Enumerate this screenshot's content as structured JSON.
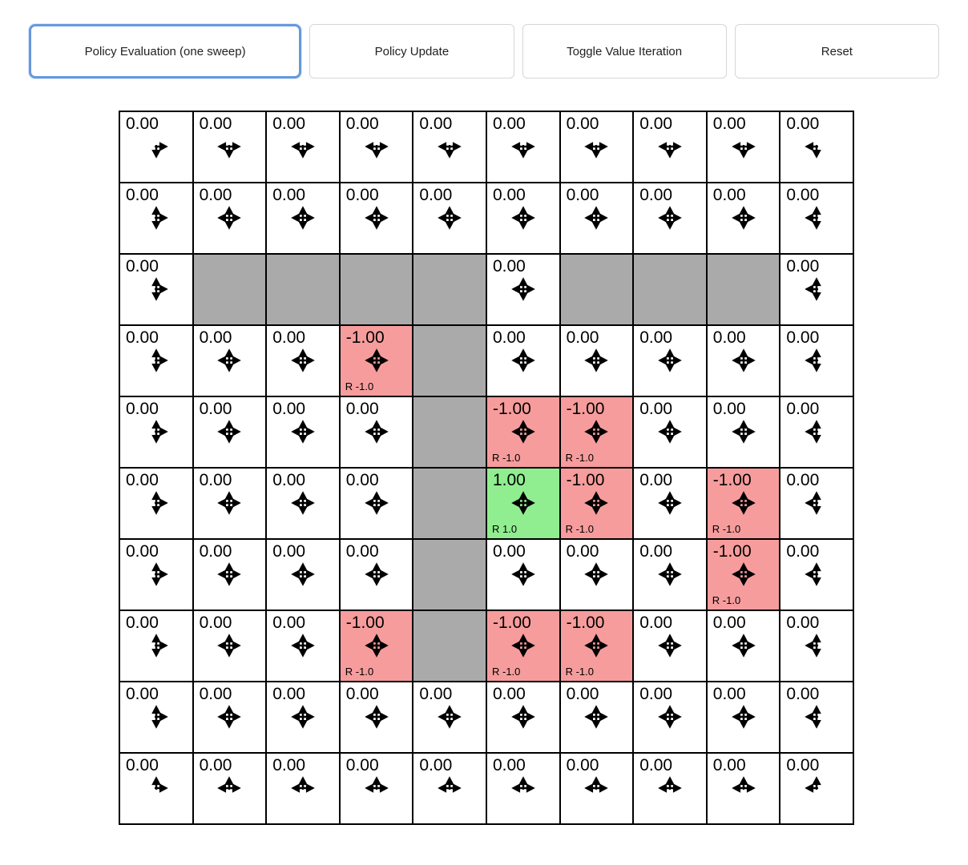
{
  "toolbar": {
    "buttons": [
      {
        "label": "Policy Evaluation (one sweep)",
        "active": true
      },
      {
        "label": "Policy Update",
        "active": false
      },
      {
        "label": "Toggle Value Iteration",
        "active": false
      },
      {
        "label": "Reset",
        "active": false
      }
    ]
  },
  "colors": {
    "wall": "#aaaaaa",
    "negative": "#f69c9c",
    "positive": "#90ee90",
    "active_border": "#6699dd"
  },
  "grid": {
    "rows": 10,
    "cols": 10,
    "rows_data": [
      [
        {
          "type": "normal",
          "value": "0.00",
          "arrows": "DR"
        },
        {
          "type": "normal",
          "value": "0.00",
          "arrows": "LDR"
        },
        {
          "type": "normal",
          "value": "0.00",
          "arrows": "LDR"
        },
        {
          "type": "normal",
          "value": "0.00",
          "arrows": "LDR"
        },
        {
          "type": "normal",
          "value": "0.00",
          "arrows": "LDR"
        },
        {
          "type": "normal",
          "value": "0.00",
          "arrows": "LDR"
        },
        {
          "type": "normal",
          "value": "0.00",
          "arrows": "LDR"
        },
        {
          "type": "normal",
          "value": "0.00",
          "arrows": "LDR"
        },
        {
          "type": "normal",
          "value": "0.00",
          "arrows": "LDR"
        },
        {
          "type": "normal",
          "value": "0.00",
          "arrows": "DL"
        }
      ],
      [
        {
          "type": "normal",
          "value": "0.00",
          "arrows": "UDR"
        },
        {
          "type": "normal",
          "value": "0.00",
          "arrows": "UDLR"
        },
        {
          "type": "normal",
          "value": "0.00",
          "arrows": "UDLR"
        },
        {
          "type": "normal",
          "value": "0.00",
          "arrows": "UDLR"
        },
        {
          "type": "normal",
          "value": "0.00",
          "arrows": "UDLR"
        },
        {
          "type": "normal",
          "value": "0.00",
          "arrows": "UDLR"
        },
        {
          "type": "normal",
          "value": "0.00",
          "arrows": "UDLR"
        },
        {
          "type": "normal",
          "value": "0.00",
          "arrows": "UDLR"
        },
        {
          "type": "normal",
          "value": "0.00",
          "arrows": "UDLR"
        },
        {
          "type": "normal",
          "value": "0.00",
          "arrows": "UDL"
        }
      ],
      [
        {
          "type": "normal",
          "value": "0.00",
          "arrows": "UDR"
        },
        {
          "type": "wall"
        },
        {
          "type": "wall"
        },
        {
          "type": "wall"
        },
        {
          "type": "wall"
        },
        {
          "type": "normal",
          "value": "0.00",
          "arrows": "UDLR"
        },
        {
          "type": "wall"
        },
        {
          "type": "wall"
        },
        {
          "type": "wall"
        },
        {
          "type": "normal",
          "value": "0.00",
          "arrows": "UDL"
        }
      ],
      [
        {
          "type": "normal",
          "value": "0.00",
          "arrows": "UDR"
        },
        {
          "type": "normal",
          "value": "0.00",
          "arrows": "UDLR"
        },
        {
          "type": "normal",
          "value": "0.00",
          "arrows": "UDLR"
        },
        {
          "type": "negative",
          "value": "-1.00",
          "arrows": "UDLR",
          "reward": "R -1.0"
        },
        {
          "type": "wall"
        },
        {
          "type": "normal",
          "value": "0.00",
          "arrows": "UDLR"
        },
        {
          "type": "normal",
          "value": "0.00",
          "arrows": "UDLR"
        },
        {
          "type": "normal",
          "value": "0.00",
          "arrows": "UDLR"
        },
        {
          "type": "normal",
          "value": "0.00",
          "arrows": "UDLR"
        },
        {
          "type": "normal",
          "value": "0.00",
          "arrows": "UDL"
        }
      ],
      [
        {
          "type": "normal",
          "value": "0.00",
          "arrows": "UDR"
        },
        {
          "type": "normal",
          "value": "0.00",
          "arrows": "UDLR"
        },
        {
          "type": "normal",
          "value": "0.00",
          "arrows": "UDLR"
        },
        {
          "type": "normal",
          "value": "0.00",
          "arrows": "UDLR"
        },
        {
          "type": "wall"
        },
        {
          "type": "negative",
          "value": "-1.00",
          "arrows": "UDLR",
          "reward": "R -1.0"
        },
        {
          "type": "negative",
          "value": "-1.00",
          "arrows": "UDLR",
          "reward": "R -1.0"
        },
        {
          "type": "normal",
          "value": "0.00",
          "arrows": "UDLR"
        },
        {
          "type": "normal",
          "value": "0.00",
          "arrows": "UDLR"
        },
        {
          "type": "normal",
          "value": "0.00",
          "arrows": "UDL"
        }
      ],
      [
        {
          "type": "normal",
          "value": "0.00",
          "arrows": "UDR"
        },
        {
          "type": "normal",
          "value": "0.00",
          "arrows": "UDLR"
        },
        {
          "type": "normal",
          "value": "0.00",
          "arrows": "UDLR"
        },
        {
          "type": "normal",
          "value": "0.00",
          "arrows": "UDLR"
        },
        {
          "type": "wall"
        },
        {
          "type": "positive",
          "value": "1.00",
          "arrows": "UDLR",
          "reward": "R 1.0"
        },
        {
          "type": "negative",
          "value": "-1.00",
          "arrows": "UDLR",
          "reward": "R -1.0"
        },
        {
          "type": "normal",
          "value": "0.00",
          "arrows": "UDLR"
        },
        {
          "type": "negative",
          "value": "-1.00",
          "arrows": "UDLR",
          "reward": "R -1.0"
        },
        {
          "type": "normal",
          "value": "0.00",
          "arrows": "UDL"
        }
      ],
      [
        {
          "type": "normal",
          "value": "0.00",
          "arrows": "UDR"
        },
        {
          "type": "normal",
          "value": "0.00",
          "arrows": "UDLR"
        },
        {
          "type": "normal",
          "value": "0.00",
          "arrows": "UDLR"
        },
        {
          "type": "normal",
          "value": "0.00",
          "arrows": "UDLR"
        },
        {
          "type": "wall"
        },
        {
          "type": "normal",
          "value": "0.00",
          "arrows": "UDLR"
        },
        {
          "type": "normal",
          "value": "0.00",
          "arrows": "UDLR"
        },
        {
          "type": "normal",
          "value": "0.00",
          "arrows": "UDLR"
        },
        {
          "type": "negative",
          "value": "-1.00",
          "arrows": "UDLR",
          "reward": "R -1.0"
        },
        {
          "type": "normal",
          "value": "0.00",
          "arrows": "UDL"
        }
      ],
      [
        {
          "type": "normal",
          "value": "0.00",
          "arrows": "UDR"
        },
        {
          "type": "normal",
          "value": "0.00",
          "arrows": "UDLR"
        },
        {
          "type": "normal",
          "value": "0.00",
          "arrows": "UDLR"
        },
        {
          "type": "negative",
          "value": "-1.00",
          "arrows": "UDLR",
          "reward": "R -1.0"
        },
        {
          "type": "wall"
        },
        {
          "type": "negative",
          "value": "-1.00",
          "arrows": "UDLR",
          "reward": "R -1.0"
        },
        {
          "type": "negative",
          "value": "-1.00",
          "arrows": "UDLR",
          "reward": "R -1.0"
        },
        {
          "type": "normal",
          "value": "0.00",
          "arrows": "UDLR"
        },
        {
          "type": "normal",
          "value": "0.00",
          "arrows": "UDLR"
        },
        {
          "type": "normal",
          "value": "0.00",
          "arrows": "UDL"
        }
      ],
      [
        {
          "type": "normal",
          "value": "0.00",
          "arrows": "UDR"
        },
        {
          "type": "normal",
          "value": "0.00",
          "arrows": "UDLR"
        },
        {
          "type": "normal",
          "value": "0.00",
          "arrows": "UDLR"
        },
        {
          "type": "normal",
          "value": "0.00",
          "arrows": "UDLR"
        },
        {
          "type": "normal",
          "value": "0.00",
          "arrows": "UDLR"
        },
        {
          "type": "normal",
          "value": "0.00",
          "arrows": "UDLR"
        },
        {
          "type": "normal",
          "value": "0.00",
          "arrows": "UDLR"
        },
        {
          "type": "normal",
          "value": "0.00",
          "arrows": "UDLR"
        },
        {
          "type": "normal",
          "value": "0.00",
          "arrows": "UDLR"
        },
        {
          "type": "normal",
          "value": "0.00",
          "arrows": "UDL"
        }
      ],
      [
        {
          "type": "normal",
          "value": "0.00",
          "arrows": "UR"
        },
        {
          "type": "normal",
          "value": "0.00",
          "arrows": "ULR"
        },
        {
          "type": "normal",
          "value": "0.00",
          "arrows": "ULR"
        },
        {
          "type": "normal",
          "value": "0.00",
          "arrows": "ULR"
        },
        {
          "type": "normal",
          "value": "0.00",
          "arrows": "ULR"
        },
        {
          "type": "normal",
          "value": "0.00",
          "arrows": "ULR"
        },
        {
          "type": "normal",
          "value": "0.00",
          "arrows": "ULR"
        },
        {
          "type": "normal",
          "value": "0.00",
          "arrows": "ULR"
        },
        {
          "type": "normal",
          "value": "0.00",
          "arrows": "ULR"
        },
        {
          "type": "normal",
          "value": "0.00",
          "arrows": "UL"
        }
      ]
    ]
  }
}
